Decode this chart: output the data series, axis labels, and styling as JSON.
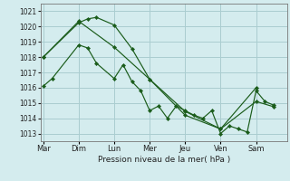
{
  "background_color": "#d4ecee",
  "grid_color": "#aacdd0",
  "line_color": "#1a5c1a",
  "marker_color": "#1a5c1a",
  "xlabel": "Pression niveau de la mer( hPa )",
  "ylim": [
    1012.5,
    1021.5
  ],
  "yticks": [
    1013,
    1014,
    1015,
    1016,
    1017,
    1018,
    1019,
    1020,
    1021
  ],
  "x_day_labels": [
    "Mar",
    "Dim",
    "Lun",
    "Mer",
    "Jeu",
    "Ven",
    "Sam"
  ],
  "x_day_positions": [
    0,
    4,
    8,
    12,
    16,
    20,
    24
  ],
  "xlim": [
    -0.3,
    27.5
  ],
  "series1": {
    "x": [
      0,
      4,
      8,
      12,
      16,
      20,
      24,
      26
    ],
    "y": [
      1018.0,
      1020.35,
      1018.65,
      1016.55,
      1014.45,
      1013.3,
      1015.1,
      1014.75
    ]
  },
  "series2": {
    "x": [
      0,
      1,
      4,
      5,
      6,
      8,
      9,
      10,
      11,
      12,
      13,
      14,
      15,
      16,
      17,
      18,
      19,
      20,
      21,
      22,
      23,
      24,
      25,
      26
    ],
    "y": [
      1016.1,
      1016.6,
      1018.8,
      1018.6,
      1017.6,
      1016.6,
      1017.5,
      1016.4,
      1015.8,
      1014.5,
      1014.8,
      1014.0,
      1014.8,
      1014.5,
      1014.2,
      1014.0,
      1014.5,
      1013.0,
      1013.5,
      1013.3,
      1013.1,
      1015.8,
      1015.1,
      1014.85
    ]
  },
  "series3": {
    "x": [
      0,
      4,
      5,
      6,
      8,
      10,
      12,
      16,
      20,
      24
    ],
    "y": [
      1018.0,
      1020.25,
      1020.5,
      1020.6,
      1020.1,
      1018.55,
      1016.55,
      1014.2,
      1013.3,
      1016.0
    ]
  }
}
